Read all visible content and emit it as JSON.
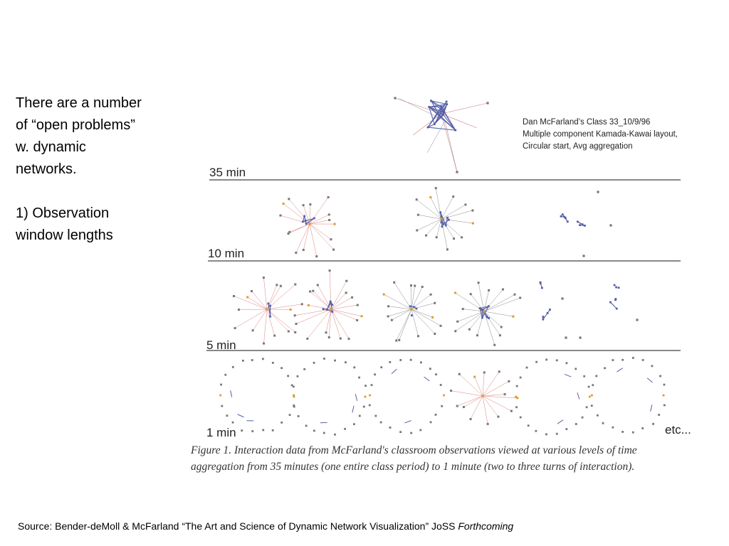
{
  "slide": {
    "bullets": {
      "line1": "There are a number",
      "line2": "of “open problems”",
      "line3": "w. dynamic",
      "line4": "networks.",
      "line5": "1) Observation",
      "line6": "window lengths"
    },
    "figure": {
      "header_note": {
        "line1": "Dan McFarland’s Class 33_10/9/96",
        "line2": "Multiple component Kamada-Kawai layout,",
        "line3": "Circular start, Avg aggregation"
      },
      "rows": [
        {
          "label": "35 min"
        },
        {
          "label": "10 min"
        },
        {
          "label": "5 min"
        },
        {
          "label": "1 min"
        }
      ],
      "etc_label": "etc...",
      "caption": {
        "line1": "Figure 1. Interaction data from McFarland's classroom observations viewed at various levels of time",
        "line2": "aggregation from 35 minutes (one entire class period) to 1 minute (two to three turns of interaction)."
      },
      "colors": {
        "cluster_edge": "#5560a8",
        "red_edge": "#d98080",
        "gray_edge": "#8a8a8a",
        "node": "#777777",
        "accent_node": "#e09a2a",
        "divider": "#888888"
      }
    },
    "source": {
      "prefix": "Source: Bender-deMoll & McFarland “The Art and Science of Dynamic Network Visualization”",
      "journal": " JoSS ",
      "status": "Forthcoming"
    }
  }
}
